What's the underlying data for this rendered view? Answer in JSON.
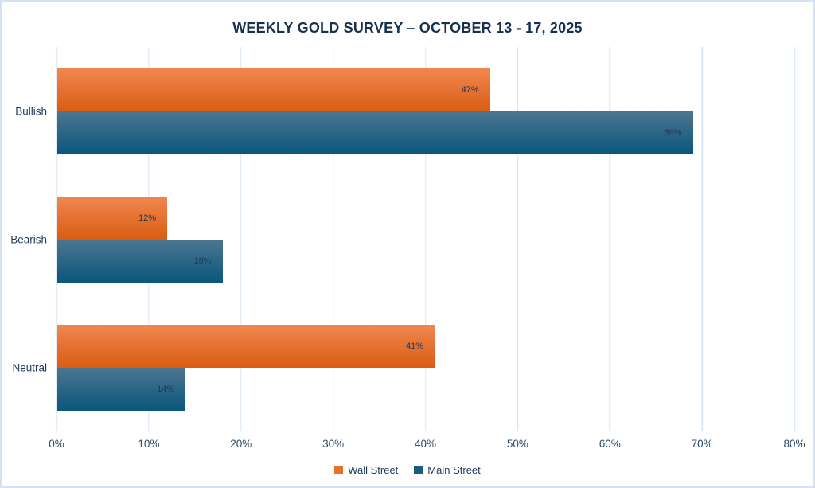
{
  "page": {
    "background": "#ffffff",
    "border_color": "#d3e1f3"
  },
  "chart_data": {
    "type": "bar",
    "orientation": "horizontal",
    "title": "WEEKLY GOLD SURVEY – OCTOBER 13 - 17, 2025",
    "categories": [
      "Bullish",
      "Bearish",
      "Neutral"
    ],
    "series": [
      {
        "name": "Wall Street",
        "values": [
          47,
          12,
          41
        ],
        "color": "#e9702a",
        "gradient_top": "#f08750",
        "gradient_bottom": "#db5c12"
      },
      {
        "name": "Main Street",
        "values": [
          69,
          18,
          14
        ],
        "color": "#1d5a7e",
        "gradient_top": "#4d758f",
        "gradient_bottom": "#0a567d"
      }
    ],
    "value_suffix": "%",
    "data_labels": [
      "47%",
      "69%",
      "12%",
      "18%",
      "41%",
      "14%"
    ],
    "xlabel": "",
    "ylabel": "",
    "xlim": [
      0,
      80
    ],
    "x_ticks": [
      "0%",
      "10%",
      "20%",
      "30%",
      "40%",
      "50%",
      "60%",
      "70%",
      "80%"
    ],
    "grid": "vertical-only",
    "gridline_color": "#d9e7f6",
    "legend_position": "bottom-center",
    "title_color": "#16304e",
    "axis_text_color": "#2f4c6a",
    "bar_label_color": "#1f3a54"
  }
}
